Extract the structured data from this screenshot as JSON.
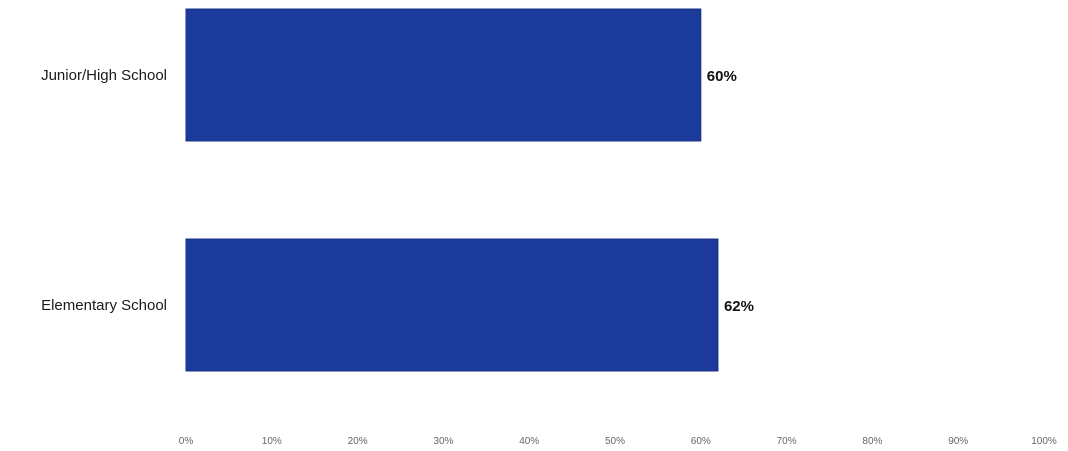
{
  "chart_data": {
    "type": "bar",
    "orientation": "horizontal",
    "title": "",
    "xlabel": "",
    "ylabel": "",
    "categories": [
      "Junior/High School",
      "Elementary School"
    ],
    "values": [
      60,
      62
    ],
    "data_labels": [
      "60%",
      "62%"
    ],
    "xlim": [
      0,
      100
    ],
    "x_ticks": [
      0,
      10,
      20,
      30,
      40,
      50,
      60,
      70,
      80,
      90,
      100
    ],
    "x_tick_labels": [
      "0%",
      "10%",
      "20%",
      "30%",
      "40%",
      "50%",
      "60%",
      "70%",
      "80%",
      "90%",
      "100%"
    ],
    "grid": false,
    "legend": "none",
    "colors": {
      "bar": "#1b3a9a",
      "bar_edge": "#17338a"
    }
  }
}
